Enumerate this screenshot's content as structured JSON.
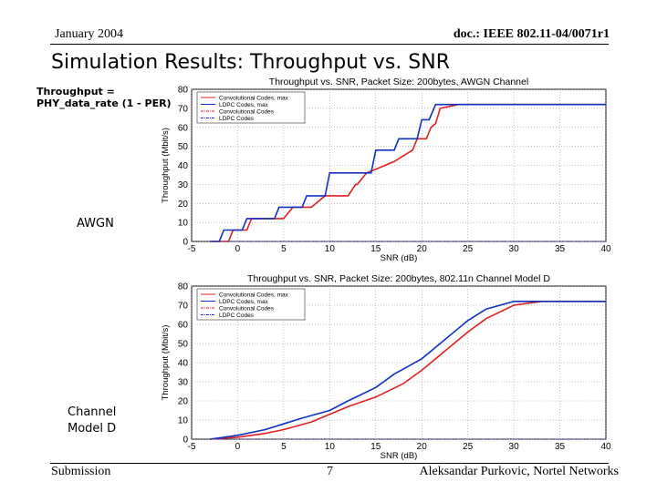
{
  "header": {
    "date": "January 2004",
    "doc": "doc.: IEEE 802.11-04/0071r1"
  },
  "slide_title": "Simulation Results: Throughput vs. SNR",
  "formula": {
    "line1": "Throughput =",
    "line2": "PHY_data_rate (1 - PER)"
  },
  "labels": {
    "awgn": "AWGN",
    "chd_line1": "Channel",
    "chd_line2": "Model D"
  },
  "footer": {
    "left": "Submission",
    "page": "7",
    "right": "Aleksandar Purkovic, Nortel Networks"
  },
  "colors": {
    "conv": "#e02020",
    "ldpc": "#1030c0",
    "grid": "#888888"
  },
  "chart_data": [
    {
      "type": "line",
      "title": "Throughput vs. SNR, Packet Size: 200bytes, AWGN Channel",
      "xlabel": "SNR (dB)",
      "ylabel": "Throughput (Mbit/s)",
      "xlim": [
        -5,
        40
      ],
      "ylim": [
        0,
        80
      ],
      "xticks": [
        -5,
        0,
        5,
        10,
        15,
        20,
        25,
        30,
        35,
        40
      ],
      "yticks": [
        0,
        10,
        20,
        30,
        40,
        50,
        60,
        70,
        80
      ],
      "grid": true,
      "legend_position": "top-left",
      "series": [
        {
          "name": "Convolutional Codes, max",
          "style": "solid",
          "color": "#e02020",
          "x": [
            -3,
            -1,
            -0.5,
            1,
            1.5,
            5,
            6,
            8,
            9.5,
            12,
            12.8,
            13,
            14,
            15,
            16,
            17,
            18,
            19,
            19.5,
            20.5,
            21,
            21.5,
            22,
            24,
            40
          ],
          "y": [
            0,
            0,
            6,
            6,
            12,
            12,
            18,
            18,
            24,
            24,
            30,
            30,
            36,
            38,
            40,
            42,
            45,
            48,
            54,
            54,
            60,
            62,
            70,
            72,
            72
          ]
        },
        {
          "name": "LDPC Codes, max",
          "style": "solid",
          "color": "#1030c0",
          "x": [
            -3,
            -2,
            -1.5,
            0.5,
            1,
            4,
            4.5,
            7,
            7.5,
            9.5,
            10,
            14.5,
            15,
            17,
            17.5,
            19.5,
            20,
            20.8,
            21.5,
            40
          ],
          "y": [
            0,
            0,
            6,
            6,
            12,
            12,
            18,
            18,
            24,
            24,
            36,
            36,
            48,
            48,
            54,
            54,
            64,
            64,
            72,
            72
          ]
        },
        {
          "name": "Convolutional Codes",
          "style": "dashdot",
          "color": "#e02020",
          "x": [
            -3,
            40
          ],
          "y": [
            0,
            0
          ]
        },
        {
          "name": "LDPC Codes",
          "style": "dashdot",
          "color": "#1030c0",
          "x": [
            -3,
            40
          ],
          "y": [
            0,
            0
          ]
        }
      ]
    },
    {
      "type": "line",
      "title": "Throughput vs. SNR, Packet Size: 200bytes, 802.11n Channel Model D",
      "xlabel": "SNR (dB)",
      "ylabel": "Throughput (Mbit/s)",
      "xlim": [
        -5,
        40
      ],
      "ylim": [
        0,
        80
      ],
      "xticks": [
        -5,
        0,
        5,
        10,
        15,
        20,
        25,
        30,
        35,
        40
      ],
      "yticks": [
        0,
        10,
        20,
        30,
        40,
        50,
        60,
        70,
        80
      ],
      "grid": true,
      "legend_position": "top-left",
      "series": [
        {
          "name": "Convolutional Codes, max",
          "style": "solid",
          "color": "#e02020",
          "x": [
            -3,
            0,
            3,
            5,
            8,
            10,
            12,
            15,
            18,
            20,
            22,
            25,
            27,
            30,
            33,
            40
          ],
          "y": [
            0,
            1,
            3,
            5,
            9,
            13,
            17,
            22,
            29,
            36,
            44,
            56,
            63,
            70,
            72,
            72
          ]
        },
        {
          "name": "LDPC Codes, max",
          "style": "solid",
          "color": "#1030c0",
          "x": [
            -3,
            0,
            3,
            5,
            7,
            10,
            12,
            15,
            17,
            20,
            22,
            25,
            27,
            30,
            32,
            40
          ],
          "y": [
            0,
            2,
            5,
            8,
            11,
            15,
            20,
            27,
            34,
            42,
            50,
            62,
            68,
            72,
            72,
            72
          ]
        },
        {
          "name": "Convolutional Codes",
          "style": "dashdot",
          "color": "#e02020",
          "x": [
            -3,
            40
          ],
          "y": [
            0,
            0
          ]
        },
        {
          "name": "LDPC Codes",
          "style": "dashdot",
          "color": "#1030c0",
          "x": [
            -3,
            40
          ],
          "y": [
            0,
            0
          ]
        }
      ]
    }
  ]
}
